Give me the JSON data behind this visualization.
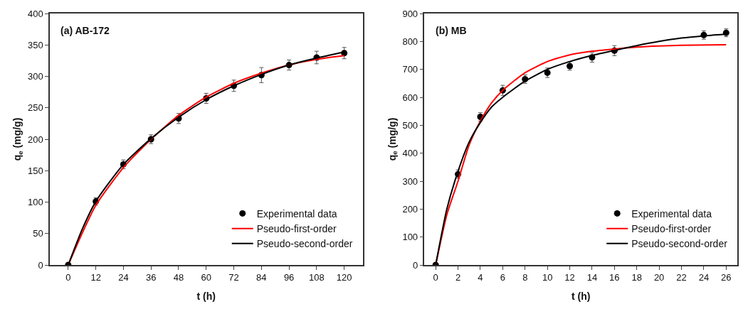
{
  "chart_data": [
    {
      "type": "line",
      "title": "(a) AB-172",
      "xlabel": "t (h)",
      "ylabel": "q$_{e}$ (mg/g)",
      "xlim": [
        -8,
        128
      ],
      "ylim": [
        0,
        400
      ],
      "xticks": [
        0,
        12,
        24,
        36,
        48,
        60,
        72,
        84,
        96,
        108,
        120
      ],
      "yticks": [
        0,
        50,
        100,
        150,
        200,
        250,
        300,
        350,
        400
      ],
      "legend": "bottom right",
      "series": [
        {
          "name": "Experimental data",
          "type": "scatter",
          "marker": "circle",
          "color": "#000000",
          "x": [
            0,
            12,
            24,
            36,
            48,
            60,
            72,
            84,
            96,
            108,
            120
          ],
          "values": [
            0,
            101,
            160,
            200,
            233,
            265,
            285,
            302,
            318,
            330,
            337
          ],
          "errors": [
            null,
            6,
            7,
            7,
            8,
            8,
            9,
            12,
            8,
            10,
            9
          ]
        },
        {
          "name": "Pseudo-first-order",
          "color": "#ff0000",
          "x": [
            0,
            6,
            12,
            24,
            36,
            48,
            60,
            72,
            84,
            96,
            108,
            120
          ],
          "values": [
            0,
            50,
            95,
            155,
            200,
            238,
            267,
            289,
            305,
            318,
            327,
            333
          ]
        },
        {
          "name": "Pseudo-second-order",
          "color": "#000000",
          "x": [
            0,
            6,
            12,
            24,
            36,
            48,
            60,
            72,
            84,
            96,
            108,
            120
          ],
          "values": [
            0,
            56,
            101,
            160,
            201,
            235,
            263,
            285,
            303,
            318,
            329,
            339
          ]
        }
      ]
    },
    {
      "type": "line",
      "title": "(b) MB",
      "xlabel": "t (h)",
      "ylabel": "q$_{e}$ (mg/g)",
      "xlim": [
        -1,
        27
      ],
      "ylim": [
        0,
        900
      ],
      "xticks": [
        0,
        2,
        4,
        6,
        8,
        10,
        12,
        14,
        16,
        18,
        20,
        22,
        24,
        26
      ],
      "yticks": [
        0,
        100,
        200,
        300,
        400,
        500,
        600,
        700,
        800,
        900
      ],
      "legend": "bottom right",
      "series": [
        {
          "name": "Experimental data",
          "type": "scatter",
          "marker": "circle",
          "color": "#000000",
          "x": [
            0,
            2,
            4,
            6,
            8,
            10,
            12,
            14,
            16,
            24,
            26
          ],
          "values": [
            0,
            325,
            530,
            625,
            665,
            688,
            712,
            743,
            767,
            823,
            831
          ],
          "errors": [
            null,
            15,
            15,
            18,
            15,
            17,
            15,
            17,
            18,
            15,
            14
          ]
        },
        {
          "name": "Pseudo-first-order",
          "color": "#ff0000",
          "x": [
            0,
            1,
            2,
            3,
            4,
            5,
            6,
            8,
            10,
            12,
            14,
            16,
            18,
            20,
            22,
            26
          ],
          "values": [
            0,
            180,
            300,
            430,
            515,
            580,
            625,
            688,
            728,
            752,
            765,
            773,
            780,
            784,
            786,
            788
          ]
        },
        {
          "name": "Pseudo-second-order",
          "color": "#000000",
          "x": [
            0,
            1,
            2,
            3,
            4,
            5,
            6,
            8,
            10,
            12,
            14,
            16,
            18,
            20,
            22,
            24,
            26
          ],
          "values": [
            0,
            200,
            335,
            440,
            510,
            565,
            600,
            658,
            700,
            728,
            750,
            768,
            785,
            800,
            812,
            820,
            826
          ]
        }
      ]
    }
  ]
}
